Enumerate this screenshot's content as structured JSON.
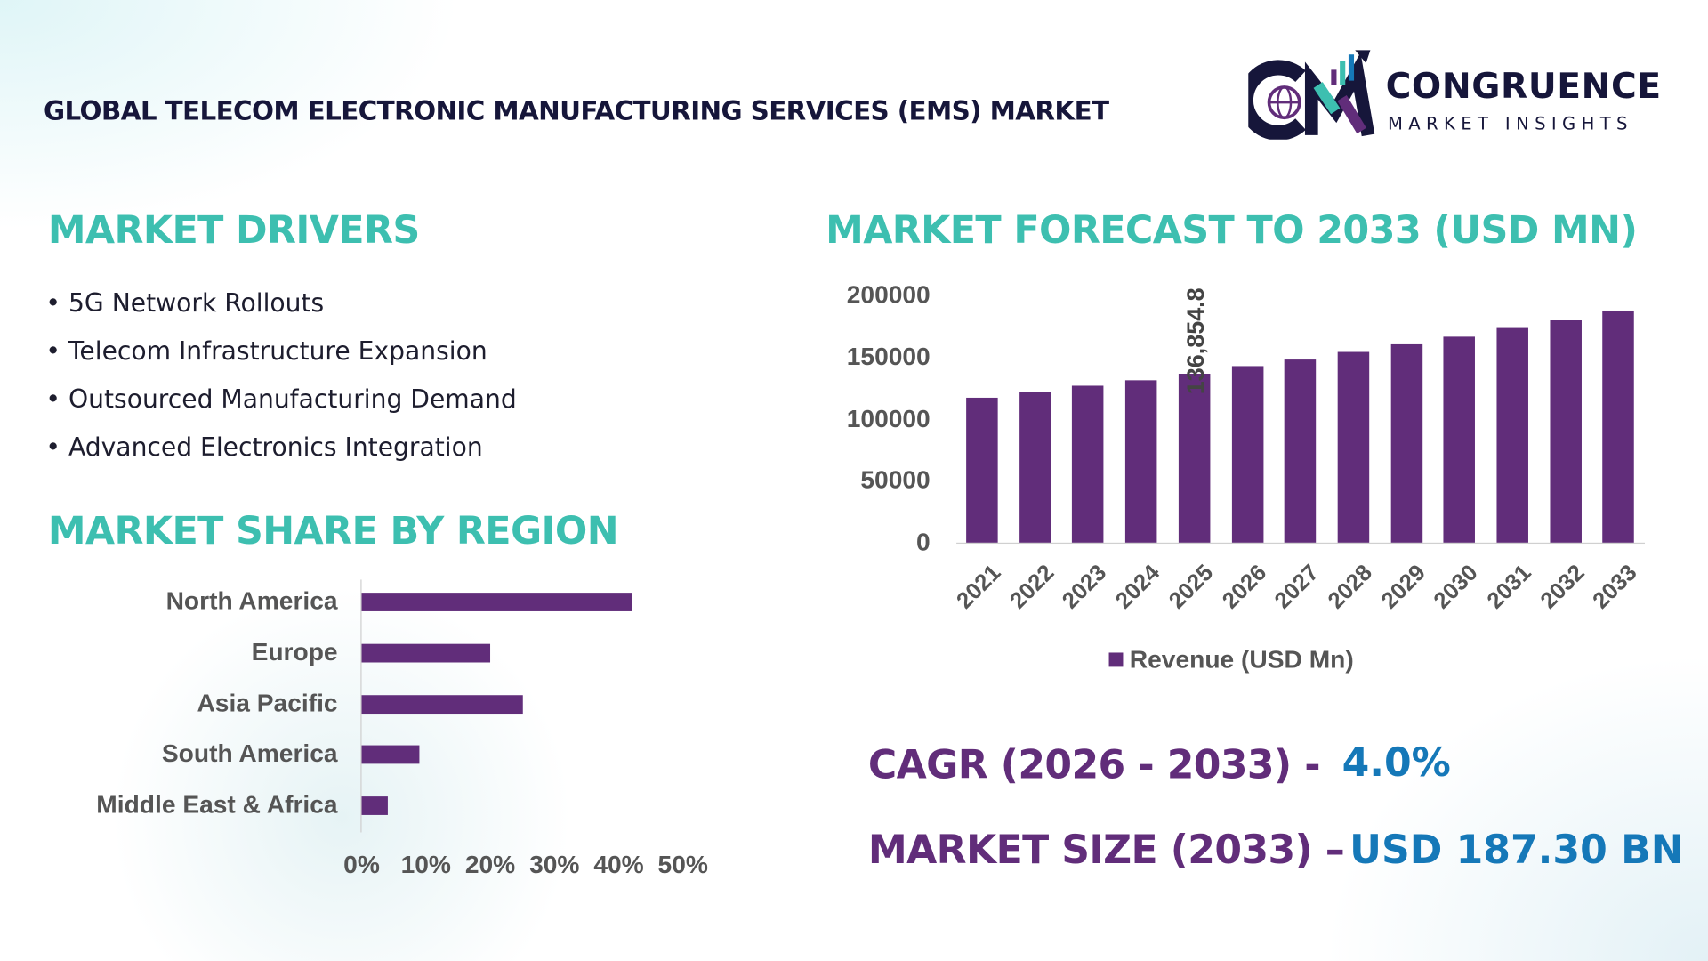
{
  "header": {
    "title": "GLOBAL TELECOM ELECTRONIC MANUFACTURING SERVICES (EMS) MARKET",
    "logo_name": "CONGRUENCE",
    "logo_tagline": "MARKET INSIGHTS"
  },
  "drivers": {
    "title": "MARKET DRIVERS",
    "items": [
      "5G Network Rollouts",
      "Telecom Infrastructure Expansion",
      "Outsourced Manufacturing Demand",
      "Advanced Electronics Integration"
    ]
  },
  "colors": {
    "teal": "#3dbfb0",
    "purple": "#612d7a",
    "blue": "#1578b8",
    "navy": "#16163a"
  },
  "chart_data": [
    {
      "type": "bar",
      "orientation": "vertical",
      "title": "MARKET FORECAST TO 2033 (USD MN)",
      "categories": [
        "2021",
        "2022",
        "2023",
        "2024",
        "2025",
        "2026",
        "2027",
        "2028",
        "2029",
        "2030",
        "2031",
        "2032",
        "2033"
      ],
      "series": [
        {
          "name": "Revenue (USD Mn)",
          "values": [
            116985,
            121664,
            126530,
            131591,
            136854.8,
            142329,
            148022,
            153943,
            160100,
            166504,
            173164,
            180091,
            187295
          ]
        }
      ],
      "data_labels": [
        {
          "category": "2025",
          "text": "136,854.8"
        }
      ],
      "ylim": [
        0,
        200000
      ],
      "yticks": [
        "0",
        "50000",
        "100000",
        "150000",
        "200000"
      ],
      "legend": "bottom",
      "grid": false
    },
    {
      "type": "bar",
      "orientation": "horizontal",
      "title": "MARKET SHARE BY REGION",
      "categories": [
        "North America",
        "Europe",
        "Asia Pacific",
        "South America",
        "Middle East & Africa"
      ],
      "values": [
        42,
        20,
        25,
        9,
        4
      ],
      "unit": "%",
      "xlim": [
        0,
        50
      ],
      "xticks": [
        "0%",
        "10%",
        "20%",
        "30%",
        "40%",
        "50%"
      ],
      "grid": false
    }
  ],
  "stats": {
    "cagr_label": "CAGR (2026 - 2033) -",
    "cagr_value": "4.0%",
    "size_label": "MARKET SIZE (2033) –",
    "size_value": "USD 187.30 BN"
  }
}
